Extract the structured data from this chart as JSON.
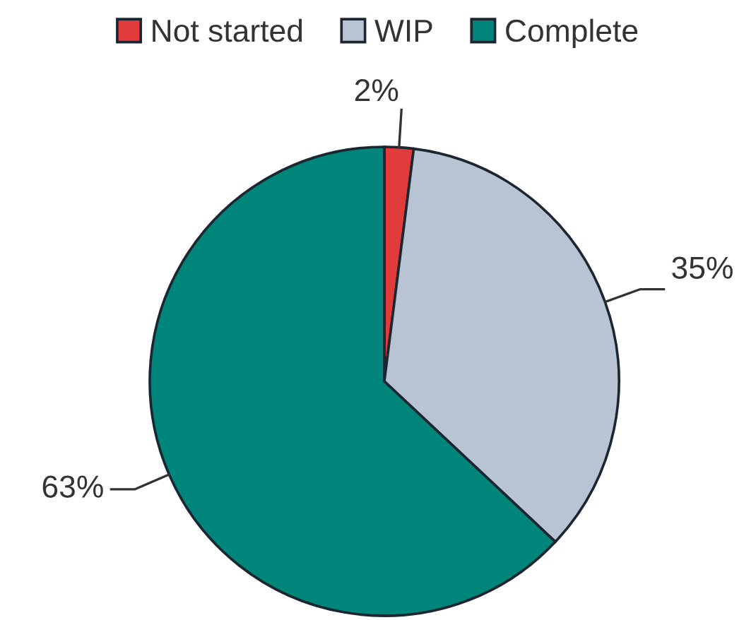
{
  "chart_data": {
    "type": "pie",
    "categories": [
      "Not started",
      "WIP",
      "Complete"
    ],
    "values": [
      2,
      35,
      63
    ],
    "colors": [
      "#e23b3b",
      "#b8c4d4",
      "#00857a"
    ],
    "value_labels": [
      "2%",
      "35%",
      "63%"
    ],
    "legend": "top"
  }
}
